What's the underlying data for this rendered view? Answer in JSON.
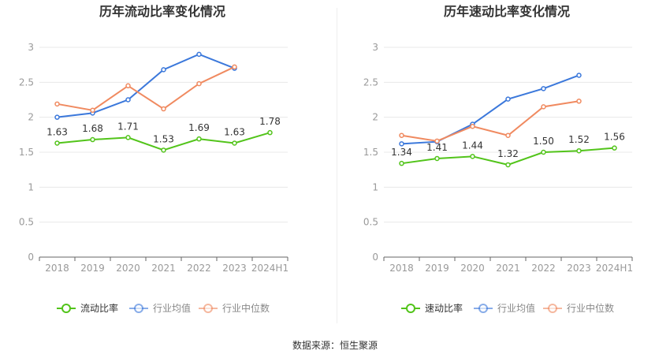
{
  "colors": {
    "primary": "#52c41a",
    "average": "#3b78db",
    "median": "#f08a60",
    "axis": "#999999",
    "grid": "#e8e8e8"
  },
  "source": "数据来源：恒生聚源",
  "chart_data": [
    {
      "type": "line",
      "title": "历年流动比率变化情况",
      "categories": [
        "2018",
        "2019",
        "2020",
        "2021",
        "2022",
        "2023",
        "2024H1"
      ],
      "ylim": [
        0,
        3
      ],
      "yticks": [
        "0",
        "0.5",
        "1",
        "1.5",
        "2",
        "2.5",
        "3"
      ],
      "legend_position": "bottom",
      "series": [
        {
          "name": "流动比率",
          "color": "#52c41a",
          "labels": true,
          "values": [
            1.63,
            1.68,
            1.71,
            1.53,
            1.69,
            1.63,
            1.78
          ],
          "value_labels": [
            "1.63",
            "1.68",
            "1.71",
            "1.53",
            "1.69",
            "1.63",
            "1.78"
          ]
        },
        {
          "name": "行业均值",
          "color": "#3b78db",
          "labels": false,
          "values": [
            2.0,
            2.06,
            2.25,
            2.68,
            2.9,
            2.7,
            null
          ]
        },
        {
          "name": "行业中位数",
          "color": "#f08a60",
          "labels": false,
          "values": [
            2.19,
            2.1,
            2.45,
            2.12,
            2.48,
            2.72,
            null
          ]
        }
      ]
    },
    {
      "type": "line",
      "title": "历年速动比率变化情况",
      "categories": [
        "2018",
        "2019",
        "2020",
        "2021",
        "2022",
        "2023",
        "2024H1"
      ],
      "ylim": [
        0,
        3
      ],
      "yticks": [
        "0",
        "0.5",
        "1",
        "1.5",
        "2",
        "2.5",
        "3"
      ],
      "legend_position": "bottom",
      "series": [
        {
          "name": "速动比率",
          "color": "#52c41a",
          "labels": true,
          "values": [
            1.34,
            1.41,
            1.44,
            1.32,
            1.5,
            1.52,
            1.56
          ],
          "value_labels": [
            "1.34",
            "1.41",
            "1.44",
            "1.32",
            "1.50",
            "1.52",
            "1.56"
          ]
        },
        {
          "name": "行业均值",
          "color": "#3b78db",
          "labels": false,
          "values": [
            1.62,
            1.65,
            1.9,
            2.26,
            2.41,
            2.6,
            null
          ]
        },
        {
          "name": "行业中位数",
          "color": "#f08a60",
          "labels": false,
          "values": [
            1.74,
            1.66,
            1.87,
            1.74,
            2.15,
            2.23,
            null
          ]
        }
      ]
    }
  ]
}
